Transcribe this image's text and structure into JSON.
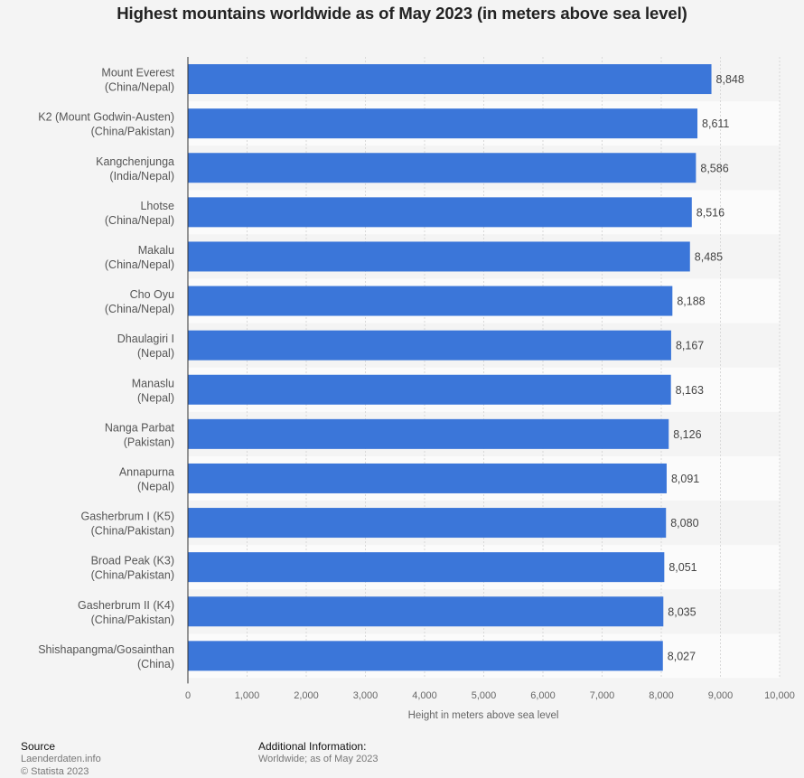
{
  "chart_data": {
    "type": "bar",
    "orientation": "horizontal",
    "title": "Highest mountains worldwide as of May 2023 (in meters above sea level)",
    "xlabel": "Height in meters above sea level",
    "ylabel": "",
    "xlim": [
      0,
      10000
    ],
    "xticks": [
      0,
      1000,
      2000,
      3000,
      4000,
      5000,
      6000,
      7000,
      8000,
      9000,
      10000
    ],
    "xtick_labels": [
      "0",
      "1,000",
      "2,000",
      "3,000",
      "4,000",
      "5,000",
      "6,000",
      "7,000",
      "8,000",
      "9,000",
      "10,000"
    ],
    "grid": true,
    "bar_color": "#3b76d9",
    "categories": [
      [
        "Mount Everest",
        "(China/Nepal)"
      ],
      [
        "K2 (Mount Godwin-Austen)",
        "(China/Pakistan)"
      ],
      [
        "Kangchenjunga",
        "(India/Nepal)"
      ],
      [
        "Lhotse",
        "(China/Nepal)"
      ],
      [
        "Makalu",
        "(China/Nepal)"
      ],
      [
        "Cho Oyu",
        "(China/Nepal)"
      ],
      [
        "Dhaulagiri I",
        "(Nepal)"
      ],
      [
        "Manaslu",
        "(Nepal)"
      ],
      [
        "Nanga Parbat",
        "(Pakistan)"
      ],
      [
        "Annapurna",
        "(Nepal)"
      ],
      [
        "Gasherbrum I (K5)",
        "(China/Pakistan)"
      ],
      [
        "Broad Peak (K3)",
        "(China/Pakistan)"
      ],
      [
        "Gasherbrum II (K4)",
        "(China/Pakistan)"
      ],
      [
        "Shishapangma/Gosainthan",
        "(China)"
      ]
    ],
    "values": [
      8848,
      8611,
      8586,
      8516,
      8485,
      8188,
      8167,
      8163,
      8126,
      8091,
      8080,
      8051,
      8035,
      8027
    ],
    "value_labels": [
      "8,848",
      "8,611",
      "8,586",
      "8,516",
      "8,485",
      "8,188",
      "8,167",
      "8,163",
      "8,126",
      "8,091",
      "8,080",
      "8,051",
      "8,035",
      "8,027"
    ]
  },
  "footer": {
    "source_heading": "Source",
    "source_name": "Laenderdaten.info",
    "copyright": "© Statista 2023",
    "additional_heading": "Additional Information:",
    "additional_text": "Worldwide; as of May 2023"
  }
}
